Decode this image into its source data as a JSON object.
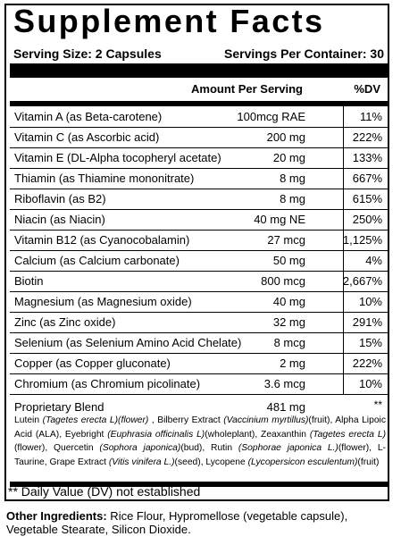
{
  "title": "Supplement Facts",
  "serving_size": "Serving Size: 2 Capsules",
  "servings_per_container": "Servings Per Container: 30",
  "columns": {
    "amount": "Amount Per Serving",
    "dv": "%DV"
  },
  "rows": [
    {
      "name": "Vitamin A (as Beta-carotene)",
      "amount": "100mcg RAE",
      "dv": "11%"
    },
    {
      "name": "Vitamin C (as Ascorbic acid)",
      "amount": "200 mg",
      "dv": "222%"
    },
    {
      "name": "Vitamin E (DL-Alpha tocopheryl acetate)",
      "amount": "20 mg",
      "dv": "133%"
    },
    {
      "name": "Thiamin (as Thiamine mononitrate)",
      "amount": "8 mg",
      "dv": "667%"
    },
    {
      "name": "Riboflavin (as B2)",
      "amount": "8 mg",
      "dv": "615%"
    },
    {
      "name": "Niacin (as Niacin)",
      "amount": "40 mg NE",
      "dv": "250%"
    },
    {
      "name": "Vitamin B12 (as Cyanocobalamin)",
      "amount": "27 mcg",
      "dv": "1,125%"
    },
    {
      "name": "Calcium (as Calcium carbonate)",
      "amount": "50 mg",
      "dv": "4%"
    },
    {
      "name": "Biotin",
      "amount": "800 mcg",
      "dv": "2,667%"
    },
    {
      "name": "Magnesium (as Magnesium oxide)",
      "amount": "40 mg",
      "dv": "10%"
    },
    {
      "name": "Zinc (as Zinc oxide)",
      "amount": "32 mg",
      "dv": "291%"
    },
    {
      "name": "Selenium (as Selenium Amino Acid Chelate)",
      "amount": "8 mcg",
      "dv": "15%"
    },
    {
      "name": "Copper (as Copper gluconate)",
      "amount": "2 mg",
      "dv": "222%"
    },
    {
      "name": "Chromium (as Chromium picolinate)",
      "amount": "3.6 mcg",
      "dv": "10%"
    }
  ],
  "blend": {
    "name": "Proprietary Blend",
    "amount": "481 mg",
    "dv": "**",
    "segments": [
      {
        "text": "Lutein ",
        "italic": false
      },
      {
        "text": "(Tagetes erecta L)(flower)",
        "italic": true
      },
      {
        "text": " , Bilberry Extract ",
        "italic": false
      },
      {
        "text": "(Vaccinium myrtillus)",
        "italic": true
      },
      {
        "text": "(fruit), Alpha Lipoic Acid (ALA), Eyebright ",
        "italic": false
      },
      {
        "text": "(Euphrasia officinalis L)",
        "italic": true
      },
      {
        "text": "(wholeplant), Zeaxanthin ",
        "italic": false
      },
      {
        "text": "(Tagetes erecta L)",
        "italic": true
      },
      {
        "text": "(flower), Quercetin ",
        "italic": false
      },
      {
        "text": "(Sophora japonica)",
        "italic": true
      },
      {
        "text": "(bud), Rutin ",
        "italic": false
      },
      {
        "text": "(Sophorae japonica L.)",
        "italic": true
      },
      {
        "text": "(flower), L-Taurine, Grape Extract ",
        "italic": false
      },
      {
        "text": "(Vitis vinifera L.)",
        "italic": true
      },
      {
        "text": "(seed), Lycopene ",
        "italic": false
      },
      {
        "text": "(Lycopersicon esculentum)",
        "italic": true
      },
      {
        "text": "(fruit)",
        "italic": false
      }
    ]
  },
  "footnote": "** Daily Value (DV) not established",
  "other_ingredients": {
    "label": "Other Ingredients:",
    "text": " Rice Flour, Hypromellose (vegetable capsule), Vegetable Stearate, Silicon Dioxide."
  }
}
